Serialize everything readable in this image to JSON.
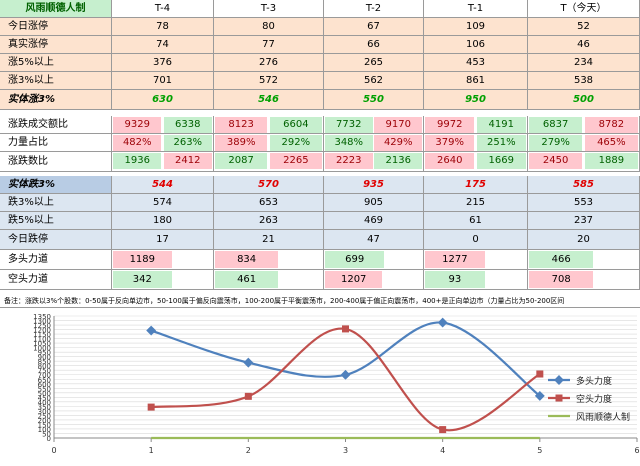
{
  "header": {
    "title": "风雨顺德人制",
    "cols": [
      "T-4",
      "T-3",
      "T-2",
      "T-1",
      "T（今天）"
    ]
  },
  "rows": [
    {
      "label": "今日涨停",
      "values": [
        "78",
        "80",
        "67",
        "109",
        "52"
      ]
    },
    {
      "label": "真实涨停",
      "values": [
        "74",
        "77",
        "66",
        "106",
        "46"
      ]
    },
    {
      "label": "涨5%以上",
      "values": [
        "376",
        "276",
        "265",
        "453",
        "234"
      ]
    },
    {
      "label": "涨3%以上",
      "values": [
        "701",
        "572",
        "562",
        "861",
        "538"
      ]
    },
    {
      "label": "实体涨3%",
      "values": [
        "630",
        "546",
        "550",
        "950",
        "500"
      ]
    },
    {
      "label": "涨跌成交额比",
      "pairs": [
        [
          "9329",
          "6338"
        ],
        [
          "8123",
          "6604"
        ],
        [
          "7732",
          "9170"
        ],
        [
          "9972",
          "4191"
        ],
        [
          "6837",
          "8782"
        ]
      ]
    },
    {
      "label": "力量占比",
      "pairs": [
        [
          "482%",
          "263%"
        ],
        [
          "389%",
          "292%"
        ],
        [
          "348%",
          "429%"
        ],
        [
          "379%",
          "251%"
        ],
        [
          "279%",
          "465%"
        ]
      ]
    },
    {
      "label": "涨跌数比",
      "pairs": [
        [
          "1936",
          "2412"
        ],
        [
          "2087",
          "2265"
        ],
        [
          "2223",
          "2136"
        ],
        [
          "2640",
          "1669"
        ],
        [
          "2450",
          "1889"
        ]
      ]
    },
    {
      "label": "实体跌3%",
      "values": [
        "544",
        "570",
        "935",
        "175",
        "585"
      ]
    },
    {
      "label": "跌3%以上",
      "values": [
        "574",
        "653",
        "905",
        "215",
        "553"
      ]
    },
    {
      "label": "跌5%以上",
      "values": [
        "180",
        "263",
        "469",
        "61",
        "237"
      ]
    },
    {
      "label": "今日跌停",
      "values": [
        "17",
        "21",
        "47",
        "0",
        "20"
      ]
    },
    {
      "label": "多头力道",
      "values": [
        "1189",
        "834",
        "699",
        "1277",
        "466"
      ]
    },
    {
      "label": "空头力道",
      "values": [
        "342",
        "461",
        "1207",
        "93",
        "708"
      ]
    }
  ],
  "note": "备注：涨跌以3%个股数：0-50属于反向单边市，50-100属于偏反向震荡市，100-200属于平衡震荡市，200-400属于偏正向震荡市，400+是正向单边市（力量占比为50-200区间",
  "colors": {
    "pink": "#ffc7ce",
    "green": "#c6efce",
    "orange": "#fde3cf",
    "blue": "#dce6f1",
    "red_text": "#e00000",
    "green_text": "#00a000",
    "dark_green_text": "#006100",
    "dark_red_text": "#9c0006",
    "series_long": "#4f81bd",
    "series_short": "#c0504d",
    "series_brand": "#9bbb59"
  },
  "chart_data": {
    "type": "line",
    "x": [
      1,
      2,
      3,
      4,
      5
    ],
    "series": [
      {
        "name": "多头力度",
        "values": [
          1189,
          834,
          699,
          1277,
          466
        ]
      },
      {
        "name": "空头力度",
        "values": [
          342,
          461,
          1207,
          93,
          708
        ]
      },
      {
        "name": "风雨顺德人制",
        "values": [
          0,
          0,
          0,
          0,
          0
        ]
      }
    ],
    "xticks": [
      "0",
      "1",
      "2",
      "3",
      "4",
      "5",
      "6"
    ],
    "yticks": [
      "0",
      "50",
      "100",
      "150",
      "200",
      "250",
      "300",
      "350",
      "400",
      "450",
      "500",
      "550",
      "600",
      "650",
      "700",
      "750",
      "800",
      "850",
      "900",
      "950",
      "1000",
      "1050",
      "1100",
      "1150",
      "1200",
      "1250",
      "1300",
      "1350"
    ],
    "xlim": [
      0,
      6
    ],
    "ylim": [
      0,
      1350
    ],
    "legend_position": "right",
    "grid": true
  }
}
